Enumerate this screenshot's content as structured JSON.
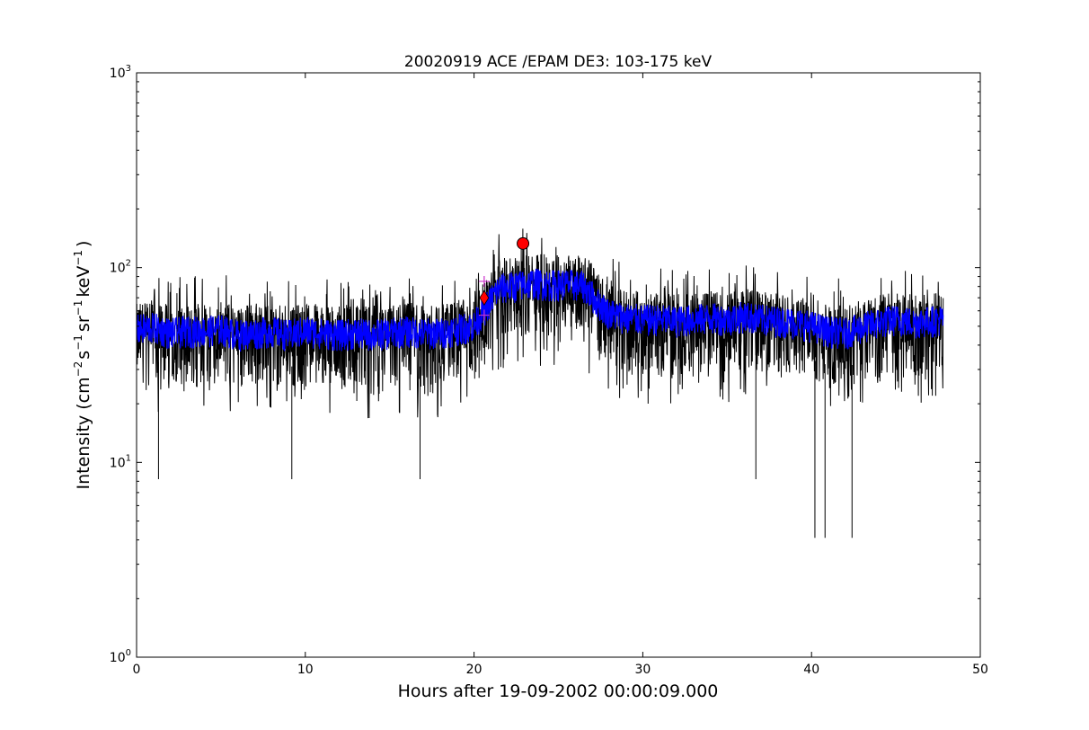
{
  "chart_data": {
    "type": "line",
    "title": "20020919 ACE /EPAM DE3: 103-175 keV",
    "xlabel": "Hours after 19-09-2002 00:00:09.000",
    "ylabel": {
      "base": "Intensity (cm",
      "exp1": "−2",
      "part2": "s",
      "exp2": "−1",
      "part3": "sr",
      "exp3": "−1",
      "part4": "keV",
      "exp4": "−1",
      "close": ")"
    },
    "xlim": [
      0,
      50
    ],
    "ylim": [
      1,
      1000
    ],
    "yscale": "log",
    "x_ticks": [
      0,
      10,
      20,
      30,
      40,
      50
    ],
    "x_tick_labels": [
      "0",
      "10",
      "20",
      "30",
      "40",
      "50"
    ],
    "y_ticks": [
      1,
      10,
      100,
      1000
    ],
    "y_tick_labels": [
      {
        "base": "10",
        "exp": "0"
      },
      {
        "base": "10",
        "exp": "1"
      },
      {
        "base": "10",
        "exp": "2"
      },
      {
        "base": "10",
        "exp": "3"
      }
    ],
    "grid": false,
    "series": [
      {
        "color": "#000000",
        "values": [
          {
            "x": 0,
            "y": 45
          },
          {
            "x": 1,
            "y": 48
          },
          {
            "x": 2,
            "y": 44
          },
          {
            "x": 3,
            "y": 46
          },
          {
            "x": 4,
            "y": 45
          },
          {
            "x": 5,
            "y": 47
          },
          {
            "x": 6,
            "y": 44
          },
          {
            "x": 7,
            "y": 46
          },
          {
            "x": 8,
            "y": 45
          },
          {
            "x": 9,
            "y": 44
          },
          {
            "x": 10,
            "y": 46
          },
          {
            "x": 11,
            "y": 45
          },
          {
            "x": 12,
            "y": 44
          },
          {
            "x": 13,
            "y": 45
          },
          {
            "x": 14,
            "y": 44
          },
          {
            "x": 15,
            "y": 45
          },
          {
            "x": 16,
            "y": 46
          },
          {
            "x": 17,
            "y": 44
          },
          {
            "x": 18,
            "y": 45
          },
          {
            "x": 19,
            "y": 47
          },
          {
            "x": 20,
            "y": 48
          },
          {
            "x": 20.7,
            "y": 60
          },
          {
            "x": 21.5,
            "y": 78
          },
          {
            "x": 22.5,
            "y": 80
          },
          {
            "x": 23.5,
            "y": 82
          },
          {
            "x": 24.5,
            "y": 80
          },
          {
            "x": 25.5,
            "y": 82
          },
          {
            "x": 26.5,
            "y": 80
          },
          {
            "x": 27.3,
            "y": 68
          },
          {
            "x": 28,
            "y": 57
          },
          {
            "x": 29,
            "y": 53
          },
          {
            "x": 30,
            "y": 52
          },
          {
            "x": 31,
            "y": 52
          },
          {
            "x": 32,
            "y": 51
          },
          {
            "x": 33,
            "y": 52
          },
          {
            "x": 34,
            "y": 53
          },
          {
            "x": 35,
            "y": 52
          },
          {
            "x": 36,
            "y": 54
          },
          {
            "x": 37,
            "y": 52
          },
          {
            "x": 38,
            "y": 51
          },
          {
            "x": 39,
            "y": 50
          },
          {
            "x": 40,
            "y": 48
          },
          {
            "x": 41,
            "y": 45
          },
          {
            "x": 42,
            "y": 44
          },
          {
            "x": 43,
            "y": 47
          },
          {
            "x": 44,
            "y": 50
          },
          {
            "x": 45,
            "y": 52
          },
          {
            "x": 46,
            "y": 50
          },
          {
            "x": 47,
            "y": 51
          },
          {
            "x": 47.8,
            "y": 52
          }
        ],
        "minima": [
          {
            "x": 1.3,
            "y": 8.2
          },
          {
            "x": 9.2,
            "y": 8.2
          },
          {
            "x": 16.8,
            "y": 8.2
          },
          {
            "x": 36.7,
            "y": 8.2
          },
          {
            "x": 40.2,
            "y": 4.1
          },
          {
            "x": 40.8,
            "y": 4.1
          },
          {
            "x": 42.4,
            "y": 4.1
          }
        ],
        "spread_low": 0.55,
        "spread_high": 1.45
      },
      {
        "color": "#0000ff",
        "values": [
          {
            "x": 0,
            "y": 48
          },
          {
            "x": 1,
            "y": 49
          },
          {
            "x": 2,
            "y": 46
          },
          {
            "x": 3,
            "y": 47
          },
          {
            "x": 4,
            "y": 47
          },
          {
            "x": 5,
            "y": 48
          },
          {
            "x": 6,
            "y": 45
          },
          {
            "x": 7,
            "y": 46
          },
          {
            "x": 8,
            "y": 47
          },
          {
            "x": 9,
            "y": 45
          },
          {
            "x": 10,
            "y": 47
          },
          {
            "x": 11,
            "y": 46
          },
          {
            "x": 12,
            "y": 45
          },
          {
            "x": 13,
            "y": 46
          },
          {
            "x": 14,
            "y": 45
          },
          {
            "x": 15,
            "y": 46
          },
          {
            "x": 16,
            "y": 47
          },
          {
            "x": 17,
            "y": 46
          },
          {
            "x": 18,
            "y": 46
          },
          {
            "x": 19,
            "y": 48
          },
          {
            "x": 20,
            "y": 50
          },
          {
            "x": 20.7,
            "y": 62
          },
          {
            "x": 21.5,
            "y": 78
          },
          {
            "x": 22.5,
            "y": 80
          },
          {
            "x": 23.5,
            "y": 83
          },
          {
            "x": 24.5,
            "y": 81
          },
          {
            "x": 25.5,
            "y": 82
          },
          {
            "x": 26.5,
            "y": 80
          },
          {
            "x": 27.3,
            "y": 66
          },
          {
            "x": 28,
            "y": 58
          },
          {
            "x": 29,
            "y": 55
          },
          {
            "x": 30,
            "y": 54
          },
          {
            "x": 31,
            "y": 54
          },
          {
            "x": 32,
            "y": 53
          },
          {
            "x": 33,
            "y": 54
          },
          {
            "x": 34,
            "y": 55
          },
          {
            "x": 35,
            "y": 54
          },
          {
            "x": 36,
            "y": 56
          },
          {
            "x": 37,
            "y": 54
          },
          {
            "x": 38,
            "y": 53
          },
          {
            "x": 39,
            "y": 52
          },
          {
            "x": 40,
            "y": 50
          },
          {
            "x": 41,
            "y": 47
          },
          {
            "x": 42,
            "y": 46
          },
          {
            "x": 43,
            "y": 49
          },
          {
            "x": 44,
            "y": 52
          },
          {
            "x": 45,
            "y": 54
          },
          {
            "x": 46,
            "y": 52
          },
          {
            "x": 47,
            "y": 53
          },
          {
            "x": 47.8,
            "y": 54
          }
        ],
        "spread_low": 0.82,
        "spread_high": 1.2
      }
    ],
    "markers": [
      {
        "shape": "circle",
        "x": 22.9,
        "y": 133,
        "color": "#ff0000"
      },
      {
        "shape": "diamond",
        "x": 20.6,
        "y": 70,
        "color": "#ff0000"
      },
      {
        "shape": "plus",
        "x": 20.6,
        "y": 85,
        "color": "#cc33cc"
      },
      {
        "shape": "plus",
        "x": 20.6,
        "y": 57,
        "color": "#cc33cc"
      }
    ]
  }
}
